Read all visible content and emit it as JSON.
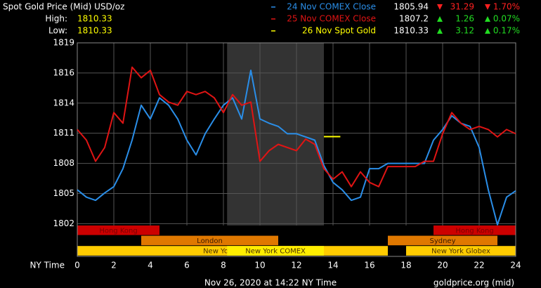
{
  "chart_data": {
    "type": "line",
    "title": "Spot Gold Price (Mid) USD/oz",
    "high_label": "High:",
    "high": 1810.33,
    "low_label": "Low:",
    "low": 1810.33,
    "x_label": "NY Time",
    "footer": "Nov 26, 2020 at 14:22 NY Time",
    "source": "goldprice.org (mid)",
    "x": [
      0,
      0.5,
      1,
      1.5,
      2,
      2.5,
      3,
      3.5,
      4,
      4.5,
      5,
      5.5,
      6,
      6.5,
      7,
      7.5,
      8,
      8.5,
      9,
      9.5,
      10,
      10.5,
      11,
      11.5,
      12,
      12.5,
      13,
      13.5,
      14,
      14.5,
      15,
      15.5,
      16,
      16.5,
      17,
      17.5,
      18,
      18.5,
      19,
      19.5,
      20,
      20.5,
      21,
      21.5,
      22,
      22.5,
      23,
      23.5,
      24
    ],
    "xlim": [
      0,
      24
    ],
    "xticks": [
      0,
      2,
      4,
      6,
      8,
      10,
      12,
      14,
      16,
      18,
      20,
      22,
      24
    ],
    "ylim": [
      1799.0,
      1819.2
    ],
    "yticks": [
      {
        "value": 1819.2,
        "label": "1819"
      },
      {
        "value": 1816.35,
        "label": "1816"
      },
      {
        "value": 1813.5,
        "label": "1814"
      },
      {
        "value": 1810.65,
        "label": "1811"
      },
      {
        "value": 1807.8,
        "label": "1808"
      },
      {
        "value": 1804.95,
        "label": "1805"
      },
      {
        "value": 1802.1,
        "label": "1802"
      }
    ],
    "grid": true,
    "series": [
      {
        "name": "24 Nov COMEX Close",
        "color": "#2a8ee8",
        "last": 1805.94,
        "change": -31.29,
        "change_label": "31.29",
        "change_pct": -1.7,
        "change_pct_label": "1.70%",
        "values": [
          1805.3,
          1804.6,
          1804.3,
          1805.0,
          1805.6,
          1807.3,
          1810.0,
          1813.3,
          1812.0,
          1814.0,
          1813.3,
          1812.0,
          1810.0,
          1808.6,
          1810.6,
          1812.0,
          1813.3,
          1814.0,
          1812.0,
          1816.6,
          1812.0,
          1811.6,
          1811.3,
          1810.6,
          1810.6,
          1810.3,
          1810.0,
          1807.6,
          1806.0,
          1805.3,
          1804.3,
          1804.6,
          1807.3,
          1807.3,
          1807.8,
          1807.8,
          1807.8,
          1807.8,
          1807.8,
          1810.0,
          1811.0,
          1812.3,
          1811.6,
          1811.3,
          1809.3,
          1805.3,
          1802.0,
          1804.6,
          1805.2
        ]
      },
      {
        "name": "25 Nov COMEX Close",
        "color": "#e01414",
        "last": 1807.2,
        "change": 1.26,
        "change_label": "1.26",
        "change_pct": 0.07,
        "change_pct_label": "0.07%",
        "values": [
          1811.0,
          1810.0,
          1808.0,
          1809.3,
          1812.6,
          1811.6,
          1816.9,
          1815.9,
          1816.6,
          1814.3,
          1813.6,
          1813.3,
          1814.6,
          1814.3,
          1814.6,
          1814.0,
          1812.6,
          1814.3,
          1813.3,
          1813.6,
          1808.0,
          1809.0,
          1809.6,
          1809.3,
          1809.0,
          1810.1,
          1809.6,
          1807.3,
          1806.3,
          1807.0,
          1805.6,
          1807.0,
          1806.0,
          1805.6,
          1807.5,
          1807.5,
          1807.5,
          1807.5,
          1808.0,
          1808.0,
          1810.6,
          1812.6,
          1811.6,
          1811.0,
          1811.3,
          1811.0,
          1810.3,
          1811.0,
          1810.6
        ]
      },
      {
        "name": "26 Nov Spot Gold",
        "color": "#ffff00",
        "last": 1810.33,
        "change": 3.12,
        "change_label": "3.12",
        "change_pct": 0.17,
        "change_pct_label": "0.17%",
        "x": [
          13.5,
          14.4
        ],
        "values": [
          1810.33,
          1810.33
        ]
      }
    ],
    "sessions": [
      {
        "name": "Hong Kong",
        "color": "#cc0000",
        "text_color": "#7a0000",
        "ranges": [
          [
            0,
            4.5
          ],
          [
            19.5,
            24
          ]
        ]
      },
      {
        "name": "London",
        "color": "#e07800",
        "text_color": "#3a1a00",
        "ranges": [
          [
            3.5,
            11
          ]
        ]
      },
      {
        "name": "Sydney",
        "color": "#e07800",
        "text_color": "#3a1a00",
        "ranges": [
          [
            17,
            23
          ]
        ]
      },
      {
        "name": "New York Globex",
        "color": "#ffcc00",
        "text_color": "#4a3000",
        "ranges": [
          [
            0,
            17
          ],
          [
            18,
            24
          ]
        ]
      },
      {
        "name": "New York COMEX",
        "color": "#ffee00",
        "text_color": "#4a3000",
        "ranges": [
          [
            8.2,
            13.5
          ]
        ]
      }
    ]
  }
}
